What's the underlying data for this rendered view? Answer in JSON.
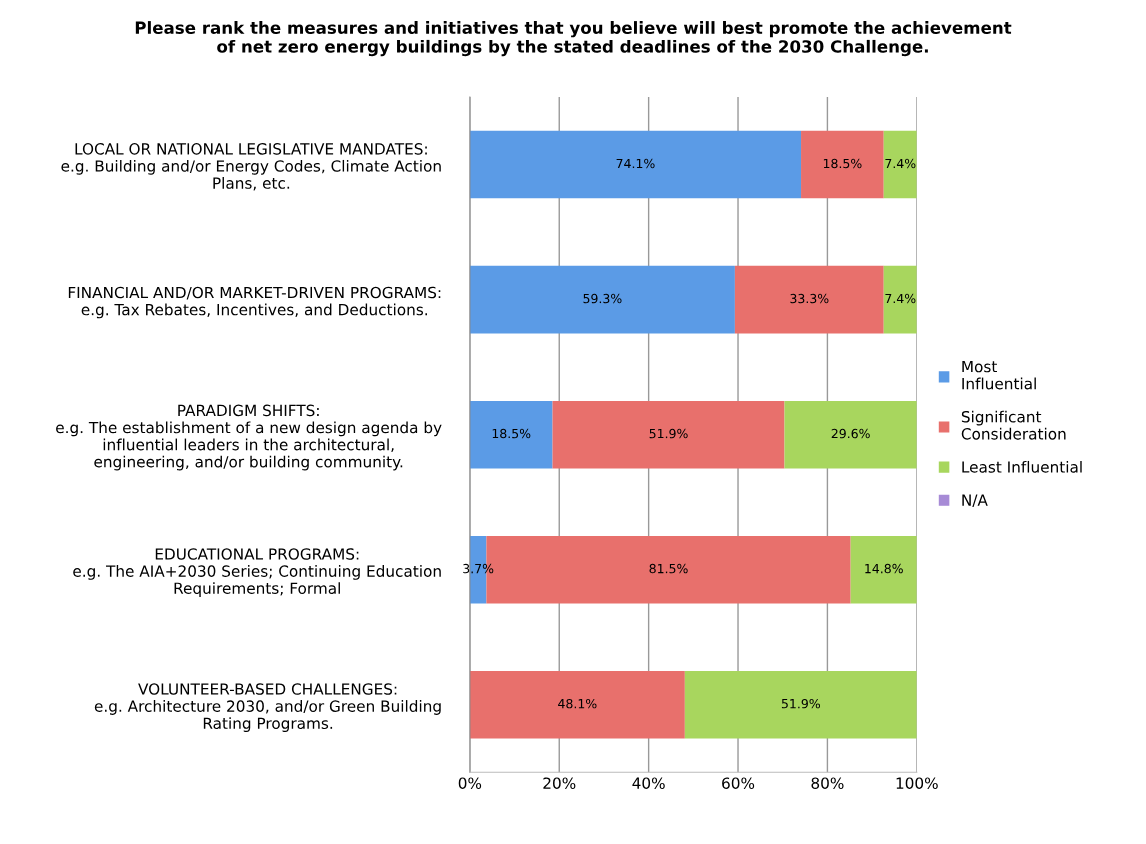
{
  "chart_data": {
    "type": "bar",
    "orientation": "horizontal",
    "stacked": true,
    "title": "Please rank the measures and initiatives that you believe will best promote the achievement\nof net zero energy buildings by the stated deadlines of the 2030 Challenge.",
    "categories": [
      "LOCAL OR NATIONAL LEGISLATIVE MANDATES:\ne.g. Building and/or Energy Codes, Climate Action\nPlans, etc.",
      "FINANCIAL AND/OR MARKET-DRIVEN PROGRAMS:\ne.g. Tax Rebates, Incentives, and Deductions.",
      "PARADIGM SHIFTS:\ne.g. The establishment of a new design agenda by\ninfluential leaders in the architectural,\nengineering, and/or building community.",
      "EDUCATIONAL PROGRAMS:\ne.g. The AIA+2030 Series; Continuing Education\nRequirements; Formal",
      "VOLUNTEER-BASED CHALLENGES:\ne.g. Architecture 2030, and/or Green Building\nRating Programs."
    ],
    "series": [
      {
        "name": "Most\nInfluential",
        "color": "#5b9be6",
        "values": [
          74.1,
          59.3,
          18.5,
          3.7,
          0
        ],
        "value_labels": [
          "74.1%",
          "59.3%",
          "18.5%",
          "3.7%",
          null
        ]
      },
      {
        "name": "Significant\nConsideration",
        "color": "#e8706c",
        "values": [
          18.5,
          33.3,
          51.9,
          81.5,
          48.1
        ],
        "value_labels": [
          "18.5%",
          "33.3%",
          "51.9%",
          "81.5%",
          "48.1%"
        ]
      },
      {
        "name": "Least Influential",
        "color": "#a8d65e",
        "values": [
          7.4,
          7.4,
          29.6,
          14.8,
          51.9
        ],
        "value_labels": [
          "7.4%",
          "7.4%",
          "29.6%",
          "14.8%",
          "51.9%"
        ]
      },
      {
        "name": "N/A",
        "color": "#a78bd6",
        "values": [
          0,
          0,
          0,
          0,
          0
        ],
        "value_labels": [
          null,
          null,
          null,
          null,
          null
        ]
      }
    ],
    "xlim": [
      0,
      100
    ],
    "xticks": [
      {
        "value": 0,
        "label": "0%"
      },
      {
        "value": 20,
        "label": "20%"
      },
      {
        "value": 40,
        "label": "40%"
      },
      {
        "value": 60,
        "label": "60%"
      },
      {
        "value": 80,
        "label": "80%"
      },
      {
        "value": 100,
        "label": "100%"
      }
    ],
    "grid": "x",
    "legend": "right"
  }
}
